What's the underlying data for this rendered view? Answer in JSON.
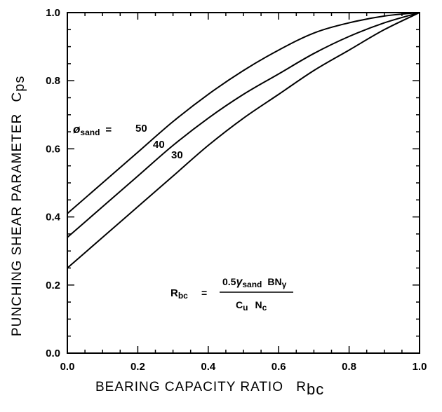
{
  "chart_data": {
    "type": "line",
    "title": "",
    "xlabel": "BEARING CAPACITY RATIO",
    "xlabel_symbol": "R",
    "xlabel_sub": "bc",
    "ylabel": "PUNCHING SHEAR PARAMETER",
    "ylabel_symbol": "C",
    "ylabel_sub": "ps",
    "xlim": [
      0.0,
      1.0
    ],
    "ylim": [
      0.0,
      1.0
    ],
    "x_ticks": [
      "0.0",
      "0.2",
      "0.4",
      "0.6",
      "0.8",
      "1.0"
    ],
    "y_ticks": [
      "0.0",
      "0.2",
      "0.4",
      "0.6",
      "0.8",
      "1.0"
    ],
    "grid": false,
    "series_label_prefix": "ø",
    "series_label_sub": "sand",
    "series_label_eq": "=",
    "series": [
      {
        "label": "50",
        "x": [
          0.0,
          0.1,
          0.2,
          0.3,
          0.4,
          0.5,
          0.6,
          0.7,
          0.8,
          0.9,
          1.0
        ],
        "y": [
          0.41,
          0.5,
          0.59,
          0.68,
          0.76,
          0.83,
          0.89,
          0.94,
          0.97,
          0.99,
          1.0
        ]
      },
      {
        "label": "40",
        "x": [
          0.0,
          0.1,
          0.2,
          0.3,
          0.4,
          0.5,
          0.6,
          0.7,
          0.8,
          0.9,
          1.0
        ],
        "y": [
          0.34,
          0.43,
          0.52,
          0.61,
          0.69,
          0.76,
          0.82,
          0.88,
          0.93,
          0.97,
          1.0
        ]
      },
      {
        "label": "30",
        "x": [
          0.0,
          0.1,
          0.2,
          0.3,
          0.4,
          0.5,
          0.6,
          0.7,
          0.8,
          0.9,
          1.0
        ],
        "y": [
          0.25,
          0.34,
          0.43,
          0.52,
          0.61,
          0.69,
          0.76,
          0.83,
          0.89,
          0.95,
          1.0
        ]
      }
    ],
    "equation": {
      "lhs": "R",
      "lhs_sub": "bc",
      "equals": "=",
      "numerator_coef": "0.5",
      "numerator_gamma": "γ",
      "numerator_gamma_sub": "sand",
      "numerator_rest": "BN",
      "numerator_rest_sub": "γ",
      "denominator_c": "C",
      "denominator_c_sub": "u",
      "denominator_n": "N",
      "denominator_n_sub": "c"
    }
  }
}
